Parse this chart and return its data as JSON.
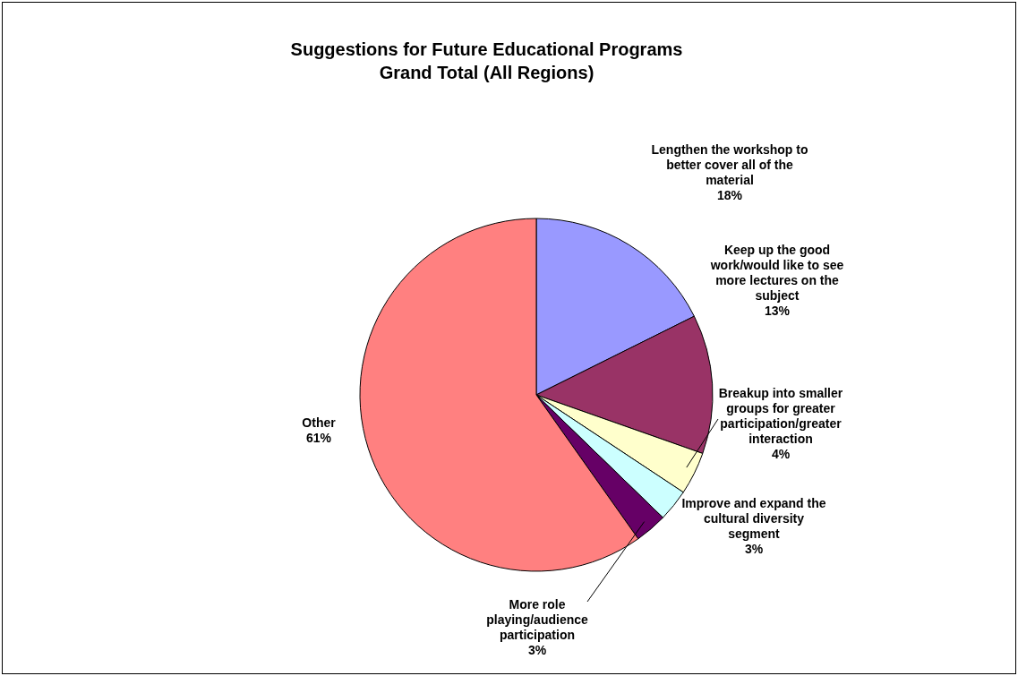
{
  "chart_data": {
    "type": "pie",
    "title": "Suggestions for Future Educational Programs",
    "subtitle": "Grand Total (All Regions)",
    "categories": [
      "Lengthen the workshop to better cover all of the material",
      "Keep up the good work/would like to see more lectures on the subject",
      "Breakup into smaller groups for greater participation/greater interaction",
      "Improve and expand the cultural diversity segment",
      "More role playing/audience participation",
      "Other"
    ],
    "values": [
      18,
      13,
      4,
      3,
      3,
      61
    ],
    "value_labels": [
      "18%",
      "13%",
      "4%",
      "3%",
      "3%",
      "61%"
    ],
    "colors": [
      "#9999ff",
      "#993366",
      "#ffffcc",
      "#ccffff",
      "#660066",
      "#ff8080"
    ],
    "legend": false
  }
}
